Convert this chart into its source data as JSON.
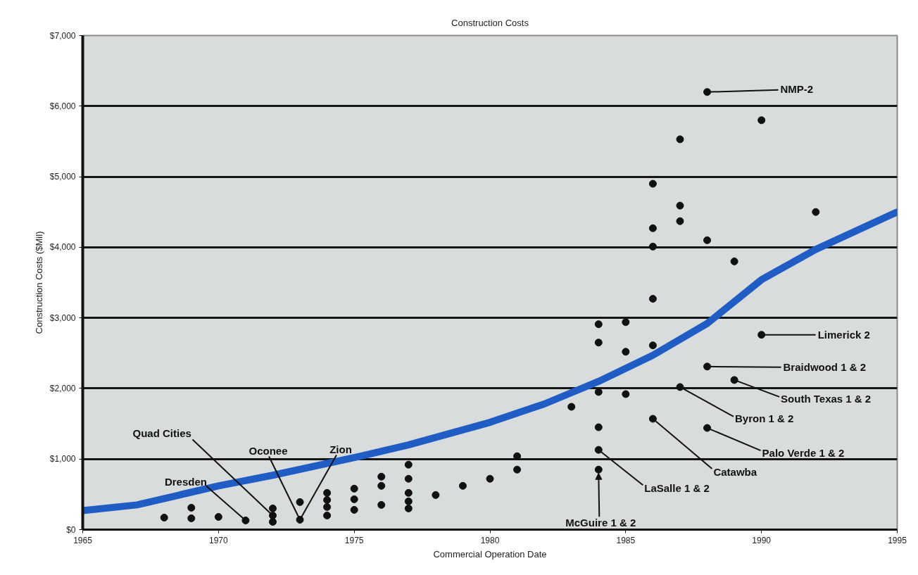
{
  "chart_data": {
    "type": "scatter",
    "title": "Construction Costs",
    "xlabel": "Commercial Operation Date",
    "ylabel": "Construction Costs ($Mil)",
    "xlim": [
      1965,
      1995
    ],
    "xticks": [
      1965,
      1970,
      1975,
      1980,
      1985,
      1990,
      1995
    ],
    "ylim": [
      0,
      7000
    ],
    "yticks": [
      {
        "value": 0,
        "label": "$0"
      },
      {
        "value": 1000,
        "label": "$1,000"
      },
      {
        "value": 2000,
        "label": "$2,000"
      },
      {
        "value": 3000,
        "label": "$3,000"
      },
      {
        "value": 4000,
        "label": "$4,000"
      },
      {
        "value": 5000,
        "label": "$5,000"
      },
      {
        "value": 6000,
        "label": "$6,000"
      },
      {
        "value": 7000,
        "label": "$7,000"
      }
    ],
    "grid": "y",
    "series": [
      {
        "color": "#111111",
        "marker": "circle",
        "x": [
          1968,
          1969,
          1969,
          1970,
          1971,
          1972,
          1972,
          1972,
          1973,
          1973,
          1974,
          1974,
          1974,
          1974,
          1975,
          1975,
          1975,
          1976,
          1976,
          1976,
          1977,
          1977,
          1977,
          1977,
          1977,
          1978,
          1979,
          1980,
          1981,
          1981,
          1983,
          1984,
          1984,
          1984,
          1984,
          1984,
          1984,
          1985,
          1985,
          1985,
          1986,
          1986,
          1986,
          1986,
          1986,
          1986,
          1987,
          1987,
          1987,
          1987,
          1988,
          1988,
          1988,
          1988,
          1989,
          1989,
          1990,
          1990,
          1992
        ],
        "values": [
          170,
          310,
          160,
          180,
          130,
          300,
          200,
          110,
          390,
          140,
          520,
          420,
          320,
          200,
          580,
          430,
          280,
          750,
          620,
          350,
          920,
          720,
          520,
          400,
          300,
          490,
          620,
          720,
          1040,
          850,
          1740,
          2910,
          2650,
          1950,
          1450,
          1130,
          850,
          2940,
          2520,
          1920,
          4900,
          4270,
          4010,
          3270,
          2610,
          1570,
          5530,
          4590,
          4370,
          2020,
          6200,
          4100,
          2310,
          1440,
          3800,
          2120,
          5800,
          2760,
          4500
        ]
      },
      {
        "type": "line",
        "color": "#1f5cc4",
        "marker": "none",
        "x": [
          1965,
          1967,
          1970,
          1972,
          1975,
          1977,
          1980,
          1982,
          1984,
          1986,
          1988,
          1990,
          1992,
          1995
        ],
        "values": [
          270,
          350,
          620,
          770,
          1020,
          1200,
          1520,
          1780,
          2100,
          2470,
          2920,
          3540,
          3970,
          4500
        ]
      }
    ],
    "annotations": [
      {
        "text": "Quad Cities",
        "x": 1972,
        "y": 200
      },
      {
        "text": "Oconee",
        "x": 1973,
        "y": 140
      },
      {
        "text": "Zion",
        "x": 1973,
        "y": 140
      },
      {
        "text": "Dresden",
        "x": 1971,
        "y": 130
      },
      {
        "text": "NMP-2",
        "x": 1988,
        "y": 6200
      },
      {
        "text": "Limerick 2",
        "x": 1990,
        "y": 2760
      },
      {
        "text": "Braidwood 1 & 2",
        "x": 1988,
        "y": 2310
      },
      {
        "text": "South Texas 1 & 2",
        "x": 1989,
        "y": 2120
      },
      {
        "text": "Byron 1 & 2",
        "x": 1987,
        "y": 2020
      },
      {
        "text": "Palo Verde 1 & 2",
        "x": 1988,
        "y": 1440
      },
      {
        "text": "Catawba",
        "x": 1986,
        "y": 1570
      },
      {
        "text": "LaSalle 1 & 2",
        "x": 1984,
        "y": 1130
      },
      {
        "text": "McGuire 1 & 2",
        "x": 1984,
        "y": 850
      }
    ]
  }
}
